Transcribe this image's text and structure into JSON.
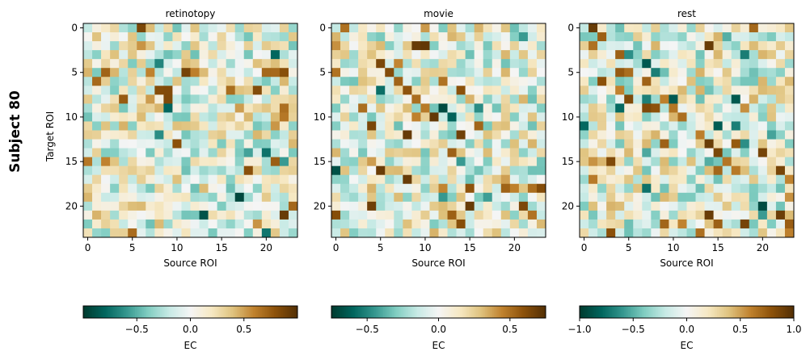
{
  "figure": {
    "row_label": "Subject 80"
  },
  "chart_data": [
    {
      "type": "heatmap",
      "title": "retinotopy",
      "xlabel": "Source ROI",
      "ylabel": "Target ROI",
      "x_ticks": [
        "0",
        "5",
        "10",
        "15",
        "20"
      ],
      "y_ticks": [
        "0",
        "5",
        "10",
        "15",
        "20"
      ],
      "grid_size": 24,
      "colorbar": {
        "label": "EC",
        "vmin": -1.0,
        "vmax": 1.0,
        "ticks": [
          "−0.5",
          "0.0",
          "0.5"
        ],
        "tick_values": [
          -0.5,
          0.0,
          0.5
        ]
      },
      "colormap": "BrBG_r",
      "matrix_seed": 80
    },
    {
      "type": "heatmap",
      "title": "movie",
      "xlabel": "Source ROI",
      "ylabel": "",
      "x_ticks": [
        "0",
        "5",
        "10",
        "15",
        "20"
      ],
      "y_ticks": [
        "0",
        "5",
        "10",
        "15",
        "20"
      ],
      "grid_size": 24,
      "colorbar": {
        "label": "EC",
        "vmin": -0.75,
        "vmax": 0.75,
        "ticks": [
          "−0.5",
          "0.0",
          "0.5"
        ],
        "tick_values": [
          -0.5,
          0.0,
          0.5
        ]
      },
      "colormap": "BrBG_r",
      "matrix_seed": 81
    },
    {
      "type": "heatmap",
      "title": "rest",
      "xlabel": "Source ROI",
      "ylabel": "",
      "x_ticks": [
        "0",
        "5",
        "10",
        "15",
        "20"
      ],
      "y_ticks": [
        "0",
        "5",
        "10",
        "15",
        "20"
      ],
      "grid_size": 24,
      "colorbar": {
        "label": "EC",
        "vmin": -1.0,
        "vmax": 1.0,
        "ticks": [
          "−1.0",
          "−0.5",
          "0.0",
          "0.5",
          "1.0"
        ],
        "tick_values": [
          -1.0,
          -0.5,
          0.0,
          0.5,
          1.0
        ]
      },
      "colormap": "BrBG_r",
      "matrix_seed": 82
    }
  ]
}
